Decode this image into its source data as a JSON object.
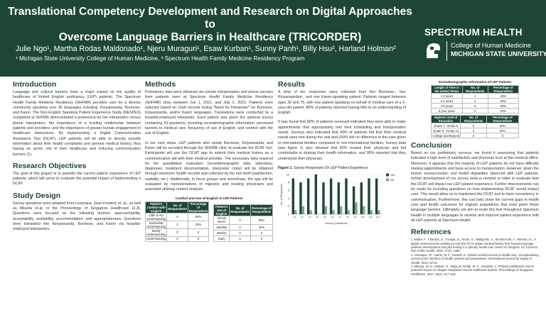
{
  "header": {
    "title_line1": "Translational Competency Development and Research on Digital Approaches to",
    "title_line2": "Overcome Language Barriers in Healthcare  (TRICORDER)",
    "authors": "Julie Ngo¹, Martha Rodas Maldonado¹, Njeru Muraguri¹, Esaw Kurban¹, Sunny Panh¹, Billy Hsu², Harland Holman²",
    "affiliations": "¹ Michigan State University College of Human Medicine, ² Spectrum Health Family Medicine Residency Program",
    "logo_spectrum": "SPECTRUM HEALTH",
    "logo_msu_line1": "College of Human Medicine",
    "logo_msu_line2": "MICHIGAN STATE UNIVERSITY",
    "banner_color": "#1e4733"
  },
  "introduction": {
    "heading": "Introduction",
    "text": "Language and cultural barriers have a major impact on the quality of healthcare of limited English proficiency (LEP) patients. The Spectrum Health Family Medicine Residency (SHFMR) provides care for a diverse community speaking over 30 languages including: Kinyarwanda, Burmese, and Karen. The Non-English Speaking Patient Experience Study (NESPES) completed at SHFMR demonstrated a preference for live interpreters versus phone interpreters, the importance of a trusting relationship between patients and providers, and the importance of greater human engagement in healthcare interactions. By implementing a Digital Communication Assistance Tool (DCAT), LEP patients will be able to directly provide information about their health complaints and general medical history, thus having an active role in their healthcare and reducing communication barriers (1)."
  },
  "objectives": {
    "heading": "Research Objectives",
    "text": "The goal of this project is to quantify the current patient experience of LEP patients, which will serve to evaluate the potential impact of implementing a DCAT."
  },
  "design": {
    "heading": "Study Design",
    "text": "Survey questions were adapted from Levesque, Jean-Frederic et. al., as well as Mkanta et.al. in the Proceedings of Singapore Healthcare (2,3). Questions were focused on the following themes: approachability, acceptability, availability, accommodation, and appropriateness. Questions were translated into Kinyarwanda, Burmese, and Karen via hospital-employed interpreters."
  },
  "methods": {
    "heading": "Methods",
    "text1": "Preliminary data were obtained via remote interpretation and phone surveys from patients seen at Spectrum Health Family Medicine Residency (SHFMR) clinic between Jun 1, 2021, and July 2, 2021. Patients were selected based on chart records noting \"Need for Interpreter\" for Burmese, Kinyarwanda, and/or Karen languages. Translations were conducted by a hospital-employed interpreter. Each patient was given the optional survey containing 19 questions, including sociodemographic information, perceived barriers to medical care, frequency of use of English, and comfort with the use of English.",
    "text2": "In our next steps, LEP patients who speak Burmese, Kinyarwanda, and Karen will be recruited through the SHFMR clinic to evaluate the DCAT tool. Participants will use the DCAT app to submit their medical history as a communication aid with their medical provider. The necessary data required for the quantitative evaluation (sociodemographic data, laboratory, diagnoses, treatment documentation, interpreter costs) will be obtained through electronic health records and collected by the tool itself (satisfaction, usability, etc.). Additionally, in focus groups and workshops, the app will be evaluated by representatives of migrants and treating physicians and assessed utilizing content analysis."
  },
  "table_comfort": {
    "caption": "Comfort and Use of English in LEP Patients",
    "headers": [
      "Patient's Comfort with English",
      "No. of Respondents",
      "Percentage of Respondents"
    ],
    "rows": [
      [
        "Little to No Understanding",
        "8",
        "80%"
      ],
      [
        "Somewhat Understanding",
        "2",
        "20%"
      ],
      [
        "Mostly Understanding",
        "0",
        "0"
      ],
      [
        "Understanding",
        "0",
        "0"
      ]
    ]
  },
  "table_use": {
    "headers": [
      "Patient's Use of English",
      "No. of Respondents",
      "Percentage of Respondents"
    ],
    "rows": [
      [
        "Almost Never",
        "8",
        "80%"
      ],
      [
        "Monthly",
        "2",
        "20%"
      ],
      [
        "Weekly",
        "0",
        "0"
      ],
      [
        "Daily",
        "0",
        "0"
      ]
    ]
  },
  "results": {
    "heading": "Results",
    "text1": "A total of ten responses were collected from five Burmese-, four Kinyarwandan-, and one Karen-speaking patient. Patients ranged between ages 30 and 75, with one patient speaking on behalf of medical care of a 2-year-old patient. 80% of patients reported having little to no understanding of English.",
    "text2": "It was found that 90% of patients surveyed indicated they were able to make appointments that appropriately met their scheduling and transportation needs. Surveys also indicated that 90% of patients felt that their medical needs were met during the visit and 100% felt no difference in the care given to international families compared to non-international families. Survey data (see figure 1) also showed that 80% trusted their physician and felt comfortable in sharing their health information, and 90% reported that they understood their physician."
  },
  "figure1": {
    "caption_label": "Figure 1.",
    "caption_text": "Survey Responses On LEP Patient Experience"
  },
  "chart_data": {
    "type": "bar",
    "title": "",
    "xlabel": "Survey Questions",
    "ylabel": "No. of Responses",
    "ylim": [
      0,
      10
    ],
    "yticks": [
      0,
      2,
      4,
      6,
      8,
      10
    ],
    "categories": [
      "Q1",
      "Q2",
      "Q3",
      "Q4",
      "Q5",
      "Q6",
      "Q7",
      "Q8",
      "Q9",
      "Q10",
      "Q11",
      "Q12"
    ],
    "series": [
      {
        "name": "Yes",
        "color": "#1e4733",
        "values": [
          9,
          8,
          9,
          10,
          8,
          9,
          8,
          9,
          7,
          8,
          9,
          9
        ]
      },
      {
        "name": "No",
        "color": "#7aa88a",
        "values": [
          1,
          2,
          1,
          0,
          2,
          1,
          2,
          1,
          3,
          2,
          1,
          1
        ]
      }
    ],
    "legend": "top-right",
    "grid": true
  },
  "table_demo": {
    "caption": "Sociodemographic Information of LEP Patients",
    "residence_headers": [
      "Length of Time in the United States",
      "No. of Respondents",
      "Percentage of Respondents"
    ],
    "residence_rows": [
      [
        "1-2 years",
        "1",
        "10%"
      ],
      [
        "2-4 years",
        "2",
        "20%"
      ],
      [
        "4-6 years",
        "5",
        "50%"
      ],
      [
        "6 year years",
        "2",
        "20%"
      ]
    ],
    "education_headers": [
      "Highest Level of Education",
      "No. of Respondents",
      "Percentage of Respondents"
    ],
    "education_rows": [
      [
        "Grade 1 - Grade 8",
        "8",
        "80%"
      ],
      [
        "Grade 9 - Grade 12",
        "2",
        "20%"
      ],
      [
        "College and Beyond",
        "0",
        "0"
      ]
    ]
  },
  "conclusion": {
    "heading": "Conclusion",
    "text": "Based on our preliminary surveys, we found it reassuring that patients indicated a high level of satisfaction and physician trust at this medical office. Moreover, it appears that the majority of LEP patients do not have difficulty making appointments and have access to transportation. However, given the known socioeconomic and health disparities observed with LEP patients, further development of our survey tools is needed in order to evaluate how the DCAT will impact our LEP patient experience. Further improvements can be made by including questions on how implementing DCAT would impact care. This would allow us to implement the DCAT tool to have consistency in communication. Furthermore, this can help close the current gaps in health care and health outcomes for migrant populations that exist given these language barriers. Ultimately, we aim to scale this tool throughout Spectrum Health in multiple languages to monitor and improve patient experience with all LEP patients at Spectrum Health."
  },
  "references": {
    "heading": "References",
    "items": [
      "1.  Muller, F., Chandra, S., Furaijat, G., Kruse, S., Waligorski, A., Simmenroth, A., Kleinert, E.,. A digital communication assistance tool (DCAT) to obtain medical history from foreign-language patients: development and pilot testing in a primary health care center for refugees. Int J Environ Res Public Health. 2020; 17(4): 1368.",
      "2.  Levesque, JF., Harris, M. F., Russell, G. Patient-centred access to health care: conceptualising access at the interface of health systems and populations. International Journal for Equity in Health. 2013; 12:18.",
      "3.  Mkanta, W. N., Ibekwe, O., Mejia de Grubb, M. C., Kovalets, C. Refined satisfaction and its potential impact on refugee integration into the healthcare system. Proceedings of Singapore Healthcare. 2017; 26(4): 217–223."
    ]
  }
}
